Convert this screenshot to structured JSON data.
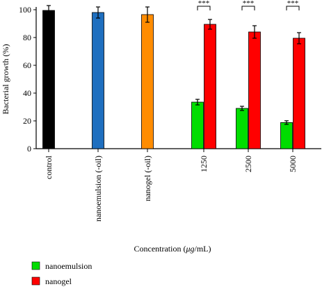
{
  "chart_data": {
    "type": "bar",
    "xlabel_parts": [
      "Concentration (",
      "μg",
      "/mL)"
    ],
    "ylabel": "Bacterial growth (%)",
    "ylim": [
      0,
      100
    ],
    "yticks": [
      "0",
      "20",
      "40",
      "60",
      "80",
      "100"
    ],
    "categories": [
      "control",
      "nanoemulsion (-oil)",
      "nanogel (-oil)",
      "1250",
      "2500",
      "5000"
    ],
    "single_bars": [
      {
        "category": "control",
        "value": 99.5,
        "error": 3.5,
        "color": "#000000"
      },
      {
        "category": "nanoemulsion (-oil)",
        "value": 98.0,
        "error": 4.0,
        "color": "#1f6fbf"
      },
      {
        "category": "nanogel (-oil)",
        "value": 96.5,
        "error": 5.5,
        "color": "#ff8c00"
      }
    ],
    "series": [
      {
        "name": "nanoemulsion",
        "color": "#00dd00",
        "values": [
          null,
          null,
          null,
          33.5,
          29.0,
          18.8
        ],
        "errors": [
          null,
          null,
          null,
          2.0,
          1.5,
          1.3
        ]
      },
      {
        "name": "nanogel",
        "color": "#ff0000",
        "values": [
          null,
          null,
          null,
          89.5,
          84.0,
          79.5
        ],
        "errors": [
          null,
          null,
          null,
          3.5,
          4.5,
          4.0
        ]
      }
    ],
    "significance": [
      "***",
      "***",
      "***"
    ],
    "legend_position": "bottom-left"
  }
}
